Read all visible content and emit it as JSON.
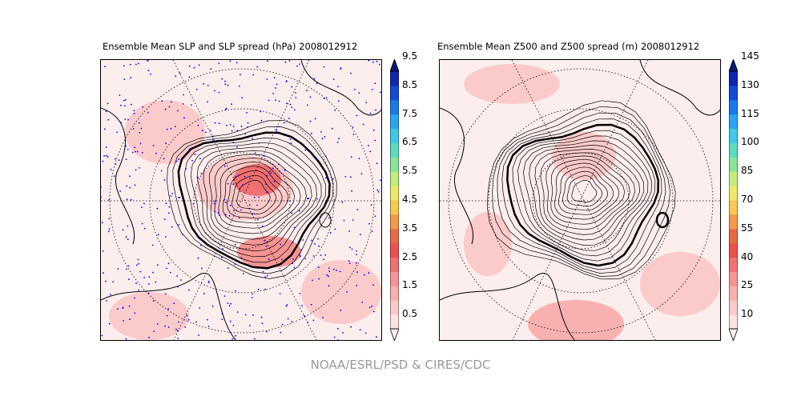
{
  "panels": [
    {
      "title": "Ensemble Mean SLP and SLP spread (hPa) 2008012912",
      "colorbar_ticks": [
        "0.5",
        "1.5",
        "2.5",
        "3.5",
        "4.5",
        "5.5",
        "6.5",
        "7.5",
        "8.5",
        "9.5"
      ],
      "has_observation_dots": true,
      "dot_color": "#0000ff"
    },
    {
      "title": "Ensemble Mean Z500 and Z500 spread (m) 2008012912",
      "colorbar_ticks": [
        "10",
        "25",
        "40",
        "55",
        "70",
        "85",
        "100",
        "115",
        "130",
        "145"
      ],
      "has_observation_dots": false
    }
  ],
  "colorbar_colors": [
    "#fde2e2",
    "#fbcaca",
    "#f9b0b0",
    "#f69494",
    "#f27070",
    "#ec5050",
    "#e86a48",
    "#f59a48",
    "#f8c850",
    "#eee868",
    "#c4ec7c",
    "#8ce498",
    "#5cdcbc",
    "#40c8e8",
    "#2aa4f4",
    "#1a78ea",
    "#1448d8",
    "#0f26b0"
  ],
  "colorbar_extend_colors": {
    "under": "#fff0f0",
    "over": "#0a1878"
  },
  "credit": "NOAA/ESRL/PSD & CIRES/CDC"
}
